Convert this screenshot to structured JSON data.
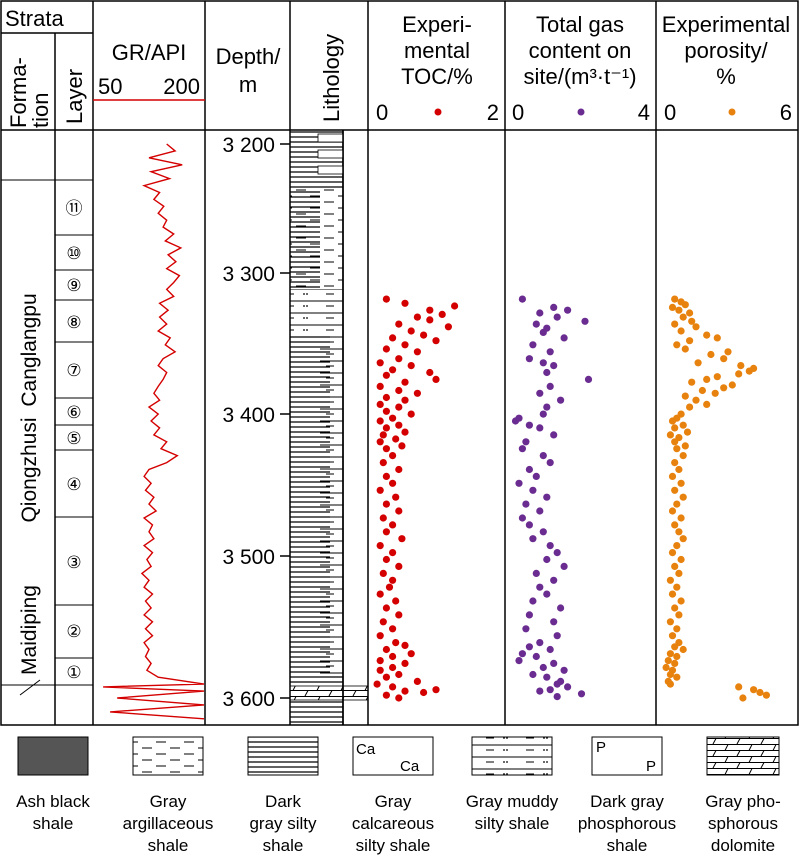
{
  "header": {
    "strata": "Strata",
    "formation": [
      "Forma-",
      "tion"
    ],
    "layer": "Layer",
    "gr_title": "GR/API",
    "gr_min": "50",
    "gr_max": "200",
    "depth_title": [
      "Depth/",
      "m"
    ],
    "lithology": "Lithology",
    "toc_title": [
      "Experi-",
      "mental",
      "TOC/%"
    ],
    "toc_min": "0",
    "toc_max": "2",
    "gas_title": [
      "Total gas",
      "content on",
      "site/(m³·t⁻¹)"
    ],
    "gas_min": "0",
    "gas_max": "4",
    "por_title": [
      "Experimental",
      "porosity/",
      "%"
    ],
    "por_min": "0",
    "por_max": "6"
  },
  "formations": [
    "Canglangpu",
    "Qiongzhusi",
    "Maidiping"
  ],
  "layers": [
    "⑪",
    "⑩",
    "⑨",
    "⑧",
    "⑦",
    "⑥",
    "⑤",
    "④",
    "③",
    "②",
    "①"
  ],
  "depth_ticks": [
    "3 200",
    "3 300",
    "3 400",
    "3 500",
    "3 600"
  ],
  "legend": [
    {
      "label": [
        "Ash black",
        "shale"
      ]
    },
    {
      "label": [
        "Gray",
        "argillaceous",
        "shale"
      ]
    },
    {
      "label": [
        "Dark",
        "gray silty",
        "shale"
      ]
    },
    {
      "label": [
        "Gray",
        "calcareous",
        "silty shale"
      ]
    },
    {
      "label": [
        "Gray muddy",
        "silty shale"
      ]
    },
    {
      "label": [
        "Dark gray",
        "phosphorous",
        "shale"
      ]
    },
    {
      "label": [
        "Gray pho-",
        "sphorous",
        "dolomite"
      ]
    }
  ],
  "colors": {
    "gr": "#d40000",
    "toc": "#d40000",
    "gas": "#6a2c91",
    "porosity": "#e8820e"
  },
  "chart_data": {
    "type": "scatter",
    "depth_range": [
      3175,
      3620
    ],
    "gr": {
      "xlim": [
        50,
        200
      ],
      "points": [
        [
          3200,
          150
        ],
        [
          3205,
          162
        ],
        [
          3210,
          125
        ],
        [
          3215,
          172
        ],
        [
          3220,
          128
        ],
        [
          3225,
          154
        ],
        [
          3230,
          118
        ],
        [
          3235,
          140
        ],
        [
          3240,
          132
        ],
        [
          3245,
          146
        ],
        [
          3250,
          138
        ],
        [
          3255,
          150
        ],
        [
          3260,
          145
        ],
        [
          3265,
          160
        ],
        [
          3270,
          148
        ],
        [
          3275,
          170
        ],
        [
          3280,
          152
        ],
        [
          3285,
          163
        ],
        [
          3290,
          150
        ],
        [
          3295,
          168
        ],
        [
          3300,
          160
        ],
        [
          3305,
          150
        ],
        [
          3310,
          160
        ],
        [
          3315,
          140
        ],
        [
          3320,
          152
        ],
        [
          3325,
          140
        ],
        [
          3330,
          150
        ],
        [
          3335,
          138
        ],
        [
          3340,
          155
        ],
        [
          3345,
          148
        ],
        [
          3350,
          162
        ],
        [
          3355,
          145
        ],
        [
          3360,
          138
        ],
        [
          3365,
          150
        ],
        [
          3370,
          145
        ],
        [
          3375,
          138
        ],
        [
          3380,
          132
        ],
        [
          3385,
          140
        ],
        [
          3390,
          125
        ],
        [
          3395,
          138
        ],
        [
          3400,
          128
        ],
        [
          3405,
          140
        ],
        [
          3410,
          132
        ],
        [
          3415,
          150
        ],
        [
          3420,
          142
        ],
        [
          3425,
          165
        ],
        [
          3430,
          150
        ],
        [
          3435,
          125
        ],
        [
          3440,
          118
        ],
        [
          3445,
          128
        ],
        [
          3450,
          120
        ],
        [
          3455,
          132
        ],
        [
          3460,
          125
        ],
        [
          3465,
          135
        ],
        [
          3470,
          118
        ],
        [
          3475,
          130
        ],
        [
          3480,
          125
        ],
        [
          3485,
          132
        ],
        [
          3490,
          118
        ],
        [
          3495,
          130
        ],
        [
          3500,
          122
        ],
        [
          3505,
          128
        ],
        [
          3510,
          115
        ],
        [
          3515,
          125
        ],
        [
          3520,
          118
        ],
        [
          3525,
          130
        ],
        [
          3530,
          120
        ],
        [
          3535,
          128
        ],
        [
          3540,
          118
        ],
        [
          3545,
          130
        ],
        [
          3550,
          120
        ],
        [
          3555,
          130
        ],
        [
          3560,
          118
        ],
        [
          3565,
          125
        ],
        [
          3570,
          120
        ],
        [
          3575,
          128
        ],
        [
          3580,
          122
        ],
        [
          3585,
          138
        ],
        [
          3590,
          250
        ],
        [
          3592,
          60
        ],
        [
          3595,
          230
        ],
        [
          3600,
          80
        ],
        [
          3605,
          230
        ],
        [
          3610,
          70
        ],
        [
          3615,
          220
        ]
      ]
    },
    "toc": {
      "xlim": [
        0,
        2
      ],
      "points": [
        [
          3312,
          0.2
        ],
        [
          3315,
          0.5
        ],
        [
          3317,
          1.3
        ],
        [
          3320,
          0.9
        ],
        [
          3323,
          1.1
        ],
        [
          3325,
          0.7
        ],
        [
          3327,
          0.9
        ],
        [
          3330,
          0.4
        ],
        [
          3332,
          1.2
        ],
        [
          3335,
          0.6
        ],
        [
          3338,
          0.8
        ],
        [
          3340,
          0.3
        ],
        [
          3342,
          1.0
        ],
        [
          3345,
          0.5
        ],
        [
          3348,
          0.2
        ],
        [
          3350,
          0.7
        ],
        [
          3355,
          0.4
        ],
        [
          3358,
          0.1
        ],
        [
          3360,
          0.6
        ],
        [
          3363,
          0.3
        ],
        [
          3365,
          0.9
        ],
        [
          3367,
          0.2
        ],
        [
          3370,
          1.0
        ],
        [
          3372,
          0.5
        ],
        [
          3375,
          0.1
        ],
        [
          3378,
          0.4
        ],
        [
          3380,
          0.7
        ],
        [
          3383,
          0.2
        ],
        [
          3385,
          0.5
        ],
        [
          3388,
          0.1
        ],
        [
          3390,
          0.4
        ],
        [
          3393,
          0.2
        ],
        [
          3395,
          0.6
        ],
        [
          3398,
          0.3
        ],
        [
          3400,
          0.1
        ],
        [
          3403,
          0.4
        ],
        [
          3405,
          0.2
        ],
        [
          3408,
          0.5
        ],
        [
          3410,
          0.15
        ],
        [
          3413,
          0.35
        ],
        [
          3415,
          0.1
        ],
        [
          3418,
          0.45
        ],
        [
          3420,
          0.2
        ],
        [
          3425,
          0.3
        ],
        [
          3430,
          0.15
        ],
        [
          3435,
          0.4
        ],
        [
          3440,
          0.2
        ],
        [
          3445,
          0.3
        ],
        [
          3450,
          0.1
        ],
        [
          3455,
          0.35
        ],
        [
          3460,
          0.2
        ],
        [
          3465,
          0.4
        ],
        [
          3470,
          0.15
        ],
        [
          3475,
          0.3
        ],
        [
          3480,
          0.2
        ],
        [
          3485,
          0.45
        ],
        [
          3490,
          0.1
        ],
        [
          3495,
          0.3
        ],
        [
          3500,
          0.2
        ],
        [
          3505,
          0.4
        ],
        [
          3510,
          0.15
        ],
        [
          3515,
          0.3
        ],
        [
          3520,
          0.25
        ],
        [
          3525,
          0.1
        ],
        [
          3530,
          0.35
        ],
        [
          3535,
          0.2
        ],
        [
          3540,
          0.4
        ],
        [
          3545,
          0.15
        ],
        [
          3550,
          0.3
        ],
        [
          3555,
          0.1
        ],
        [
          3560,
          0.35
        ],
        [
          3562,
          0.5
        ],
        [
          3565,
          0.2
        ],
        [
          3568,
          0.6
        ],
        [
          3570,
          0.3
        ],
        [
          3573,
          0.1
        ],
        [
          3575,
          0.5
        ],
        [
          3578,
          0.3
        ],
        [
          3580,
          0.1
        ],
        [
          3583,
          0.4
        ],
        [
          3585,
          0.2
        ],
        [
          3588,
          0.7
        ],
        [
          3590,
          0.05
        ],
        [
          3592,
          0.3
        ],
        [
          3594,
          1.0
        ],
        [
          3595,
          0.5
        ],
        [
          3596,
          0.8
        ],
        [
          3598,
          0.2
        ],
        [
          3600,
          0.4
        ]
      ]
    },
    "gas": {
      "xlim": [
        0,
        4
      ],
      "points": [
        [
          3312,
          0.3
        ],
        [
          3318,
          1.2
        ],
        [
          3320,
          1.6
        ],
        [
          3322,
          0.8
        ],
        [
          3325,
          1.3
        ],
        [
          3328,
          2.1
        ],
        [
          3330,
          0.7
        ],
        [
          3333,
          1.0
        ],
        [
          3336,
          0.9
        ],
        [
          3340,
          1.5
        ],
        [
          3345,
          0.6
        ],
        [
          3350,
          1.1
        ],
        [
          3355,
          0.5
        ],
        [
          3358,
          0.9
        ],
        [
          3360,
          1.2
        ],
        [
          3365,
          1.0
        ],
        [
          3370,
          2.2
        ],
        [
          3375,
          1.1
        ],
        [
          3380,
          0.8
        ],
        [
          3385,
          1.4
        ],
        [
          3390,
          1.0
        ],
        [
          3395,
          0.9
        ],
        [
          3398,
          0.2
        ],
        [
          3400,
          0.1
        ],
        [
          3403,
          0.5
        ],
        [
          3405,
          0.8
        ],
        [
          3410,
          1.2
        ],
        [
          3415,
          0.4
        ],
        [
          3420,
          0.3
        ],
        [
          3425,
          0.9
        ],
        [
          3430,
          1.1
        ],
        [
          3435,
          0.5
        ],
        [
          3440,
          0.7
        ],
        [
          3445,
          0.2
        ],
        [
          3450,
          0.6
        ],
        [
          3455,
          1.0
        ],
        [
          3460,
          0.4
        ],
        [
          3465,
          0.8
        ],
        [
          3470,
          0.3
        ],
        [
          3475,
          0.5
        ],
        [
          3480,
          0.9
        ],
        [
          3485,
          0.6
        ],
        [
          3490,
          1.1
        ],
        [
          3495,
          1.3
        ],
        [
          3500,
          1.0
        ],
        [
          3505,
          1.5
        ],
        [
          3510,
          0.7
        ],
        [
          3515,
          1.2
        ],
        [
          3520,
          0.8
        ],
        [
          3525,
          1.0
        ],
        [
          3530,
          0.6
        ],
        [
          3535,
          1.4
        ],
        [
          3540,
          0.5
        ],
        [
          3545,
          1.2
        ],
        [
          3550,
          0.4
        ],
        [
          3555,
          1.3
        ],
        [
          3560,
          0.8
        ],
        [
          3563,
          0.5
        ],
        [
          3565,
          1.1
        ],
        [
          3568,
          0.3
        ],
        [
          3570,
          0.7
        ],
        [
          3573,
          0.2
        ],
        [
          3575,
          1.2
        ],
        [
          3578,
          0.9
        ],
        [
          3580,
          1.5
        ],
        [
          3583,
          0.6
        ],
        [
          3585,
          1.0
        ],
        [
          3588,
          1.4
        ],
        [
          3590,
          1.3
        ],
        [
          3592,
          1.6
        ],
        [
          3594,
          1.1
        ],
        [
          3595,
          0.8
        ],
        [
          3597,
          2.0
        ],
        [
          3599,
          1.3
        ]
      ]
    },
    "porosity": {
      "xlim": [
        0,
        6
      ],
      "points": [
        [
          3312,
          0.5
        ],
        [
          3314,
          0.8
        ],
        [
          3316,
          1.0
        ],
        [
          3318,
          0.4
        ],
        [
          3320,
          0.7
        ],
        [
          3322,
          1.2
        ],
        [
          3325,
          0.9
        ],
        [
          3328,
          1.3
        ],
        [
          3330,
          0.5
        ],
        [
          3332,
          1.5
        ],
        [
          3335,
          0.8
        ],
        [
          3338,
          2.0
        ],
        [
          3340,
          2.5
        ],
        [
          3342,
          1.2
        ],
        [
          3345,
          0.6
        ],
        [
          3348,
          1.0
        ],
        [
          3350,
          3.0
        ],
        [
          3352,
          2.2
        ],
        [
          3355,
          2.8
        ],
        [
          3358,
          1.6
        ],
        [
          3360,
          3.6
        ],
        [
          3362,
          4.2
        ],
        [
          3364,
          4.0
        ],
        [
          3366,
          3.5
        ],
        [
          3368,
          2.5
        ],
        [
          3370,
          2.0
        ],
        [
          3372,
          1.3
        ],
        [
          3374,
          3.2
        ],
        [
          3376,
          2.8
        ],
        [
          3378,
          1.8
        ],
        [
          3380,
          2.4
        ],
        [
          3382,
          1.0
        ],
        [
          3385,
          1.5
        ],
        [
          3388,
          2.0
        ],
        [
          3390,
          1.2
        ],
        [
          3395,
          0.8
        ],
        [
          3398,
          0.6
        ],
        [
          3400,
          0.4
        ],
        [
          3403,
          0.9
        ],
        [
          3405,
          0.5
        ],
        [
          3408,
          1.1
        ],
        [
          3410,
          0.3
        ],
        [
          3412,
          0.7
        ],
        [
          3415,
          0.5
        ],
        [
          3418,
          1.0
        ],
        [
          3420,
          0.6
        ],
        [
          3425,
          0.9
        ],
        [
          3430,
          0.5
        ],
        [
          3435,
          0.7
        ],
        [
          3440,
          0.4
        ],
        [
          3445,
          0.8
        ],
        [
          3450,
          0.5
        ],
        [
          3455,
          0.9
        ],
        [
          3460,
          0.6
        ],
        [
          3465,
          0.4
        ],
        [
          3470,
          0.8
        ],
        [
          3475,
          0.5
        ],
        [
          3480,
          0.7
        ],
        [
          3485,
          0.9
        ],
        [
          3490,
          0.6
        ],
        [
          3495,
          0.4
        ],
        [
          3500,
          0.8
        ],
        [
          3505,
          0.5
        ],
        [
          3510,
          0.7
        ],
        [
          3515,
          0.3
        ],
        [
          3520,
          0.6
        ],
        [
          3525,
          0.4
        ],
        [
          3530,
          0.8
        ],
        [
          3535,
          0.5
        ],
        [
          3540,
          0.7
        ],
        [
          3545,
          0.3
        ],
        [
          3550,
          0.6
        ],
        [
          3555,
          0.4
        ],
        [
          3560,
          0.7
        ],
        [
          3563,
          0.5
        ],
        [
          3565,
          0.9
        ],
        [
          3568,
          0.3
        ],
        [
          3570,
          0.6
        ],
        [
          3573,
          0.2
        ],
        [
          3575,
          0.5
        ],
        [
          3578,
          0.1
        ],
        [
          3580,
          0.4
        ],
        [
          3583,
          0.3
        ],
        [
          3585,
          0.6
        ],
        [
          3588,
          0.2
        ],
        [
          3590,
          0.3
        ],
        [
          3592,
          3.5
        ],
        [
          3594,
          4.2
        ],
        [
          3596,
          4.5
        ],
        [
          3598,
          4.8
        ],
        [
          3600,
          3.7
        ]
      ]
    }
  }
}
